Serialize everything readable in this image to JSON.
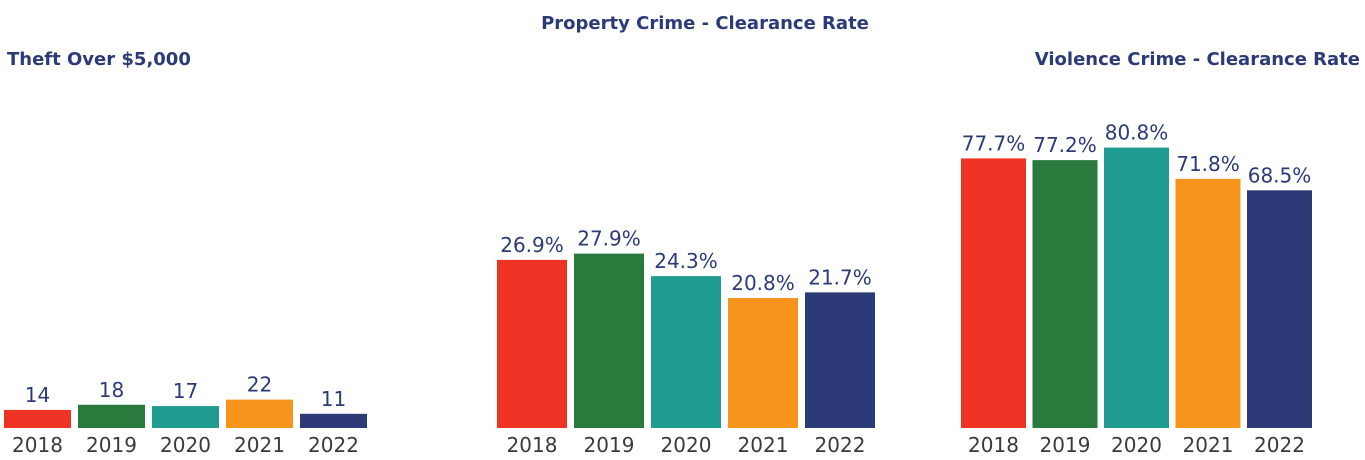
{
  "chart_data": [
    {
      "type": "bar",
      "title": "Theft Over $5,000",
      "categories": [
        "2018",
        "2019",
        "2020",
        "2021",
        "2022"
      ],
      "values": [
        14,
        18,
        17,
        22,
        11
      ],
      "colors": [
        "#ee3224",
        "#2b7a3d",
        "#1f9c8f",
        "#f7941d",
        "#2d3a78"
      ]
    },
    {
      "type": "bar",
      "title": "Property Crime - Clearance Rate",
      "categories": [
        "2018",
        "2019",
        "2020",
        "2021",
        "2022"
      ],
      "values": [
        26.9,
        27.9,
        24.3,
        20.8,
        21.7
      ],
      "value_labels": [
        "26.9%",
        "27.9%",
        "24.3%",
        "20.8%",
        "21.7%"
      ],
      "colors": [
        "#ee3224",
        "#2b7a3d",
        "#1f9c8f",
        "#f7941d",
        "#2d3a78"
      ]
    },
    {
      "type": "bar",
      "title": "Violence Crime - Clearance Rate",
      "categories": [
        "2018",
        "2019",
        "2020",
        "2021",
        "2022"
      ],
      "values": [
        77.7,
        77.2,
        80.8,
        71.8,
        68.5
      ],
      "value_labels": [
        "77.7%",
        "77.2%",
        "80.8%",
        "71.8%",
        "68.5%"
      ],
      "colors": [
        "#ee3224",
        "#2b7a3d",
        "#1f9c8f",
        "#f7941d",
        "#2d3a78"
      ]
    }
  ]
}
